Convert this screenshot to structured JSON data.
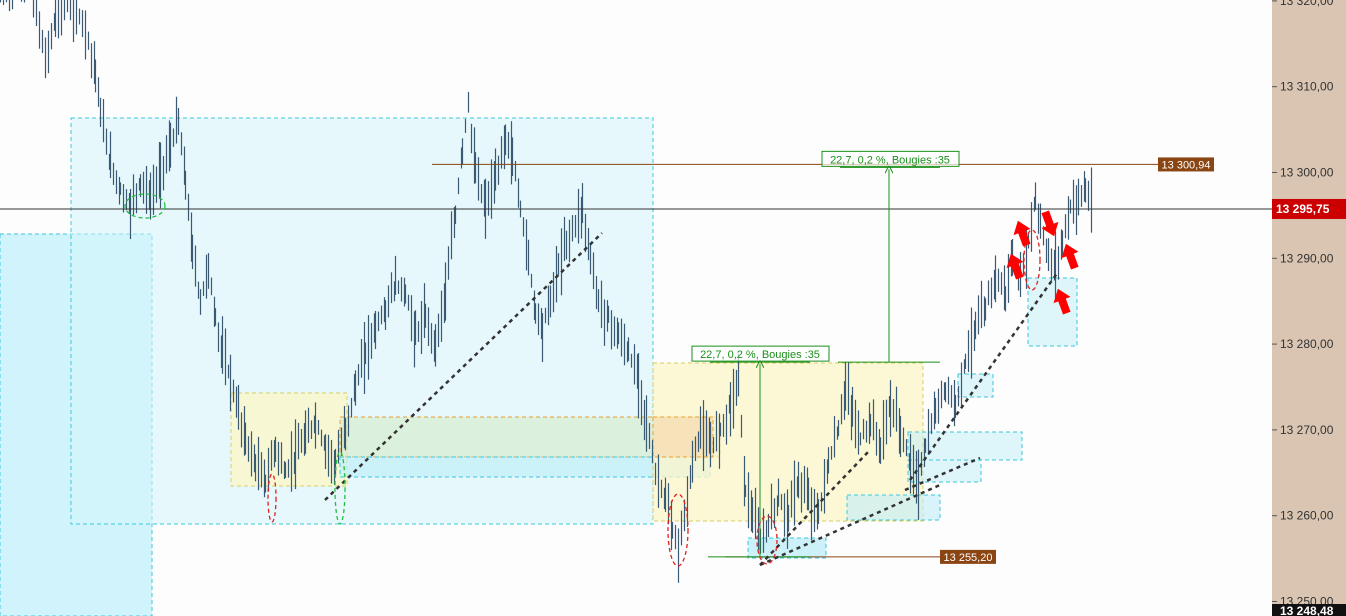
{
  "chart_data": {
    "type": "candlestick",
    "title": "",
    "xlabel": "",
    "ylabel": "",
    "ylim": [
      13248.48,
      13321
    ],
    "y_ticks": [
      "13 320,00",
      "13 310,00",
      "13 300,00",
      "13 290,00",
      "13 280,00",
      "13 270,00",
      "13 260,00",
      "13 250,00"
    ],
    "y_tick_values": [
      13320,
      13310,
      13300,
      13290,
      13280,
      13270,
      13260,
      13250
    ],
    "current_price": {
      "value": 13295.75,
      "label": "13 295,75",
      "color": "#cc0000"
    },
    "bottom_price": {
      "value": 13248.48,
      "label": "13 248,48"
    },
    "levels": [
      {
        "value": 13300.94,
        "label": "13 300,94",
        "color": "#8b4513"
      },
      {
        "value": 13255.2,
        "label": "13 255,20",
        "color": "#8b4513"
      }
    ],
    "measurements": [
      {
        "label": "22,7, 0,2 %, Bougies :35",
        "from": 13255.2,
        "to": 13277.9
      },
      {
        "label": "22,7, 0,2 %, Bougies :35",
        "from": 13277.9,
        "to": 13300.6
      }
    ],
    "grid": false,
    "colors": {
      "background": "#fdfdfd",
      "axis_panel": "#d9c5b2",
      "zone_blue": "#bfeef8",
      "zone_yellow": "#fbf6c8",
      "zone_orange": "#f8dbb0",
      "zone_green": "#d7ecd2",
      "arrows": "#ff0000"
    },
    "price_path": [
      [
        0,
        13321
      ],
      [
        30,
        13322
      ],
      [
        45,
        13313
      ],
      [
        55,
        13318
      ],
      [
        70,
        13320
      ],
      [
        85,
        13317
      ],
      [
        95,
        13312
      ],
      [
        100,
        13307
      ],
      [
        110,
        13301
      ],
      [
        120,
        13298
      ],
      [
        130,
        13296
      ],
      [
        140,
        13299
      ],
      [
        150,
        13297
      ],
      [
        160,
        13300
      ],
      [
        170,
        13303
      ],
      [
        178,
        13306
      ],
      [
        185,
        13299
      ],
      [
        192,
        13291
      ],
      [
        200,
        13285
      ],
      [
        208,
        13289
      ],
      [
        215,
        13283
      ],
      [
        222,
        13279
      ],
      [
        230,
        13276
      ],
      [
        238,
        13272
      ],
      [
        245,
        13269
      ],
      [
        255,
        13266
      ],
      [
        265,
        13264
      ],
      [
        275,
        13268
      ],
      [
        285,
        13265
      ],
      [
        295,
        13267
      ],
      [
        305,
        13269
      ],
      [
        315,
        13271
      ],
      [
        325,
        13268
      ],
      [
        335,
        13266
      ],
      [
        345,
        13270
      ],
      [
        355,
        13275
      ],
      [
        365,
        13279
      ],
      [
        375,
        13282
      ],
      [
        385,
        13284
      ],
      [
        395,
        13287
      ],
      [
        405,
        13286
      ],
      [
        415,
        13281
      ],
      [
        425,
        13283
      ],
      [
        435,
        13280
      ],
      [
        445,
        13286
      ],
      [
        455,
        13295
      ],
      [
        462,
        13303
      ],
      [
        468,
        13308
      ],
      [
        475,
        13300
      ],
      [
        485,
        13296
      ],
      [
        495,
        13299
      ],
      [
        505,
        13304
      ],
      [
        512,
        13302
      ],
      [
        520,
        13296
      ],
      [
        528,
        13290
      ],
      [
        535,
        13284
      ],
      [
        542,
        13282
      ],
      [
        550,
        13285
      ],
      [
        558,
        13289
      ],
      [
        566,
        13292
      ],
      [
        575,
        13294
      ],
      [
        582,
        13296
      ],
      [
        590,
        13290
      ],
      [
        598,
        13285
      ],
      [
        608,
        13283
      ],
      [
        618,
        13281
      ],
      [
        628,
        13279
      ],
      [
        638,
        13276
      ],
      [
        646,
        13271
      ],
      [
        655,
        13265
      ],
      [
        665,
        13262
      ],
      [
        672,
        13258
      ],
      [
        678,
        13256
      ],
      [
        684,
        13260
      ],
      [
        692,
        13266
      ],
      [
        700,
        13270
      ],
      [
        710,
        13268
      ],
      [
        720,
        13270
      ],
      [
        730,
        13273
      ],
      [
        738,
        13276
      ],
      [
        745,
        13263
      ],
      [
        752,
        13260
      ],
      [
        760,
        13257
      ],
      [
        768,
        13259
      ],
      [
        778,
        13262
      ],
      [
        788,
        13260
      ],
      [
        798,
        13264
      ],
      [
        808,
        13262
      ],
      [
        818,
        13260
      ],
      [
        828,
        13266
      ],
      [
        838,
        13270
      ],
      [
        845,
        13275
      ],
      [
        852,
        13272
      ],
      [
        860,
        13269
      ],
      [
        870,
        13271
      ],
      [
        880,
        13268
      ],
      [
        890,
        13273
      ],
      [
        900,
        13270
      ],
      [
        910,
        13266
      ],
      [
        918,
        13264
      ],
      [
        925,
        13268
      ],
      [
        935,
        13272
      ],
      [
        945,
        13275
      ],
      [
        955,
        13273
      ],
      [
        965,
        13278
      ],
      [
        975,
        13282
      ],
      [
        985,
        13284
      ],
      [
        995,
        13288
      ],
      [
        1005,
        13286
      ],
      [
        1012,
        13290
      ],
      [
        1020,
        13287
      ],
      [
        1028,
        13292
      ],
      [
        1035,
        13297
      ],
      [
        1040,
        13294
      ],
      [
        1048,
        13290
      ],
      [
        1055,
        13289
      ],
      [
        1062,
        13292
      ],
      [
        1070,
        13296
      ],
      [
        1078,
        13297
      ],
      [
        1085,
        13298
      ],
      [
        1092,
        13295.75
      ]
    ]
  }
}
